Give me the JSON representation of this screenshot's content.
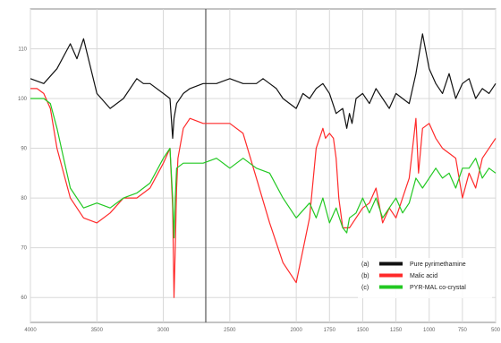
{
  "chart_data": {
    "type": "line",
    "x_ticks": [
      4000,
      3500,
      3000,
      2500,
      2000,
      1750,
      1500,
      1250,
      1000,
      750,
      500
    ],
    "x_tick_labels": [
      "4000",
      "3500",
      "3000",
      "2500",
      "2000",
      "1750",
      "1500",
      "1250",
      "1000",
      "750",
      "500"
    ],
    "y_ticks": [
      60,
      70,
      80,
      90,
      100,
      110
    ],
    "y_tick_labels": [
      "60",
      "70",
      "80",
      "90",
      "100",
      "110"
    ],
    "xlim": [
      4000,
      500
    ],
    "ylim": [
      55,
      118
    ],
    "grid": true,
    "legend_position": "bottom-right",
    "series": [
      {
        "name": "Pure pyrimethamine",
        "label": "(a)",
        "color": "#111111",
        "x": [
          4000,
          3900,
          3800,
          3700,
          3650,
          3600,
          3500,
          3400,
          3300,
          3200,
          3150,
          3100,
          3000,
          2950,
          2930,
          2920,
          2900,
          2850,
          2800,
          2700,
          2600,
          2500,
          2400,
          2300,
          2250,
          2200,
          2150,
          2100,
          2050,
          2000,
          1950,
          1900,
          1850,
          1800,
          1750,
          1700,
          1650,
          1620,
          1600,
          1580,
          1550,
          1500,
          1450,
          1400,
          1350,
          1300,
          1250,
          1200,
          1150,
          1100,
          1050,
          1000,
          950,
          900,
          850,
          800,
          750,
          700,
          650,
          600,
          550,
          500
        ],
        "y": [
          104,
          103,
          106,
          111,
          108,
          112,
          101,
          98,
          100,
          104,
          103,
          103,
          101,
          100,
          92,
          96,
          99,
          101,
          102,
          103,
          103,
          104,
          103,
          103,
          104,
          103,
          102,
          100,
          99,
          98,
          101,
          100,
          102,
          103,
          101,
          97,
          98,
          94,
          97,
          95,
          100,
          101,
          99,
          102,
          100,
          98,
          101,
          100,
          99,
          105,
          113,
          106,
          103,
          101,
          105,
          100,
          103,
          104,
          100,
          102,
          101,
          103
        ]
      },
      {
        "name": "Malic acid",
        "label": "(b)",
        "color": "#ff2a2a",
        "x": [
          4000,
          3950,
          3900,
          3850,
          3800,
          3700,
          3600,
          3500,
          3400,
          3300,
          3200,
          3100,
          3000,
          2950,
          2930,
          2920,
          2910,
          2900,
          2890,
          2850,
          2800,
          2700,
          2600,
          2500,
          2400,
          2300,
          2200,
          2100,
          2000,
          1900,
          1850,
          1800,
          1780,
          1750,
          1720,
          1700,
          1680,
          1650,
          1600,
          1550,
          1500,
          1450,
          1400,
          1350,
          1300,
          1250,
          1200,
          1150,
          1100,
          1080,
          1050,
          1000,
          950,
          900,
          850,
          800,
          750,
          700,
          650,
          600,
          550,
          500
        ],
        "y": [
          102,
          102,
          101,
          98,
          90,
          80,
          76,
          75,
          77,
          80,
          80,
          82,
          87,
          90,
          78,
          60,
          70,
          82,
          88,
          94,
          96,
          95,
          95,
          95,
          93,
          84,
          75,
          67,
          63,
          76,
          90,
          94,
          92,
          93,
          92,
          88,
          80,
          74,
          74,
          76,
          78,
          79,
          82,
          75,
          78,
          76,
          80,
          84,
          96,
          85,
          94,
          95,
          92,
          90,
          89,
          88,
          80,
          85,
          82,
          88,
          90,
          92
        ]
      },
      {
        "name": "PYR-MAL co-crystal",
        "label": "(c)",
        "color": "#22c822",
        "x": [
          4000,
          3950,
          3900,
          3850,
          3800,
          3750,
          3700,
          3600,
          3500,
          3400,
          3300,
          3200,
          3100,
          3000,
          2950,
          2930,
          2920,
          2910,
          2900,
          2850,
          2800,
          2700,
          2600,
          2500,
          2400,
          2300,
          2200,
          2100,
          2000,
          1900,
          1850,
          1800,
          1750,
          1700,
          1650,
          1620,
          1600,
          1550,
          1500,
          1450,
          1400,
          1350,
          1300,
          1250,
          1200,
          1150,
          1100,
          1050,
          1000,
          950,
          900,
          850,
          800,
          750,
          700,
          650,
          600,
          550,
          500
        ],
        "y": [
          100,
          100,
          100,
          99,
          94,
          88,
          82,
          78,
          79,
          78,
          80,
          81,
          83,
          88,
          90,
          80,
          72,
          80,
          86,
          87,
          87,
          87,
          88,
          86,
          88,
          86,
          85,
          80,
          76,
          79,
          76,
          80,
          75,
          78,
          74,
          73,
          76,
          77,
          80,
          77,
          80,
          76,
          78,
          80,
          77,
          79,
          84,
          82,
          84,
          86,
          84,
          85,
          82,
          86,
          86,
          88,
          84,
          86,
          85
        ]
      }
    ]
  }
}
